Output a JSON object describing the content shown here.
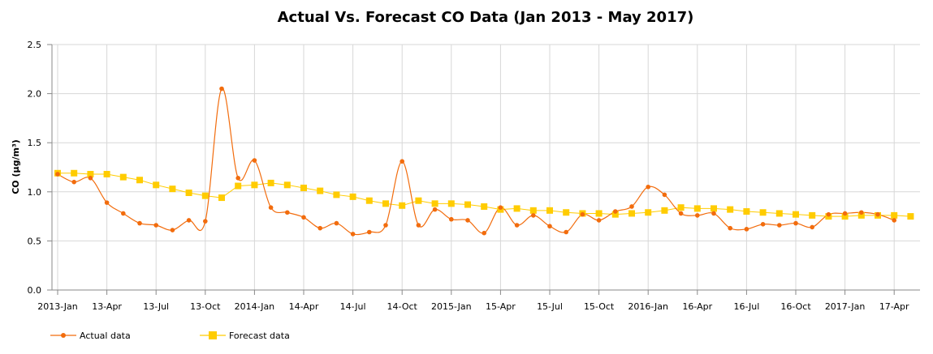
{
  "chart_data": {
    "type": "line",
    "title": "Actual Vs. Forecast CO Data (Jan 2013 - May 2017)",
    "ylabel": "CO (µg/m³)",
    "xlabel": "",
    "ylim": [
      0,
      2.5
    ],
    "yticks": [
      "0.0",
      "0.5",
      "1.0",
      "1.5",
      "2.0",
      "2.5"
    ],
    "grid": true,
    "legend_position": "bottom-left",
    "x_ticks": [
      {
        "month_index": 0,
        "label": "2013-Jan"
      },
      {
        "month_index": 3,
        "label": "13-Apr"
      },
      {
        "month_index": 6,
        "label": "13-Jul"
      },
      {
        "month_index": 9,
        "label": "13-Oct"
      },
      {
        "month_index": 12,
        "label": "2014-Jan"
      },
      {
        "month_index": 15,
        "label": "14-Apr"
      },
      {
        "month_index": 18,
        "label": "14-Jul"
      },
      {
        "month_index": 21,
        "label": "14-Oct"
      },
      {
        "month_index": 24,
        "label": "2015-Jan"
      },
      {
        "month_index": 27,
        "label": "15-Apr"
      },
      {
        "month_index": 30,
        "label": "15-Jul"
      },
      {
        "month_index": 33,
        "label": "15-Oct"
      },
      {
        "month_index": 36,
        "label": "2016-Jan"
      },
      {
        "month_index": 39,
        "label": "16-Apr"
      },
      {
        "month_index": 42,
        "label": "16-Jul"
      },
      {
        "month_index": 45,
        "label": "16-Oct"
      },
      {
        "month_index": 48,
        "label": "2017-Jan"
      },
      {
        "month_index": 51,
        "label": "17-Apr"
      }
    ],
    "series": [
      {
        "name": "Actual data",
        "color": "#f26c0d",
        "marker": "circle",
        "points": [
          [
            0,
            1.18
          ],
          [
            1,
            1.1
          ],
          [
            2,
            1.14
          ],
          [
            3,
            0.89
          ],
          [
            4,
            0.78
          ],
          [
            5,
            0.68
          ],
          [
            6,
            0.66
          ],
          [
            7,
            0.61
          ],
          [
            8,
            0.71
          ],
          [
            9,
            0.7
          ],
          [
            10,
            2.05
          ],
          [
            11,
            1.14
          ],
          [
            12,
            1.32
          ],
          [
            13,
            0.84
          ],
          [
            14,
            0.79
          ],
          [
            15,
            0.74
          ],
          [
            16,
            0.63
          ],
          [
            17,
            0.68
          ],
          [
            18,
            0.57
          ],
          [
            19,
            0.59
          ],
          [
            20,
            0.66
          ],
          [
            21,
            1.31
          ],
          [
            22,
            0.66
          ],
          [
            23,
            0.82
          ],
          [
            24,
            0.72
          ],
          [
            25,
            0.71
          ],
          [
            26,
            0.58
          ],
          [
            27,
            0.84
          ],
          [
            28,
            0.66
          ],
          [
            29,
            0.76
          ],
          [
            30,
            0.65
          ],
          [
            31,
            0.59
          ],
          [
            32,
            0.77
          ],
          [
            33,
            0.71
          ],
          [
            34,
            0.8
          ],
          [
            35,
            0.85
          ],
          [
            36,
            1.05
          ],
          [
            37,
            0.97
          ],
          [
            38,
            0.78
          ],
          [
            39,
            0.76
          ],
          [
            40,
            0.78
          ],
          [
            41,
            0.63
          ],
          [
            42,
            0.62
          ],
          [
            43,
            0.67
          ],
          [
            44,
            0.66
          ],
          [
            45,
            0.68
          ],
          [
            46,
            0.64
          ],
          [
            47,
            0.77
          ],
          [
            48,
            0.78
          ],
          [
            49,
            0.79
          ],
          [
            50,
            0.77
          ],
          [
            51,
            0.71
          ]
        ]
      },
      {
        "name": "Forecast data",
        "color": "#ffcc00",
        "marker": "square",
        "points": [
          [
            0,
            1.19
          ],
          [
            1,
            1.19
          ],
          [
            2,
            1.18
          ],
          [
            3,
            1.18
          ],
          [
            4,
            1.15
          ],
          [
            5,
            1.12
          ],
          [
            6,
            1.07
          ],
          [
            7,
            1.03
          ],
          [
            8,
            0.99
          ],
          [
            9,
            0.96
          ],
          [
            10,
            0.94
          ],
          [
            11,
            1.06
          ],
          [
            12,
            1.07
          ],
          [
            13,
            1.09
          ],
          [
            14,
            1.07
          ],
          [
            15,
            1.04
          ],
          [
            16,
            1.01
          ],
          [
            17,
            0.97
          ],
          [
            18,
            0.95
          ],
          [
            19,
            0.91
          ],
          [
            20,
            0.88
          ],
          [
            21,
            0.86
          ],
          [
            22,
            0.91
          ],
          [
            23,
            0.88
          ],
          [
            24,
            0.88
          ],
          [
            25,
            0.87
          ],
          [
            26,
            0.85
          ],
          [
            27,
            0.82
          ],
          [
            28,
            0.83
          ],
          [
            29,
            0.81
          ],
          [
            30,
            0.81
          ],
          [
            31,
            0.79
          ],
          [
            32,
            0.78
          ],
          [
            33,
            0.78
          ],
          [
            34,
            0.77
          ],
          [
            35,
            0.78
          ],
          [
            36,
            0.79
          ],
          [
            37,
            0.81
          ],
          [
            38,
            0.84
          ],
          [
            39,
            0.83
          ],
          [
            40,
            0.83
          ],
          [
            41,
            0.82
          ],
          [
            42,
            0.8
          ],
          [
            43,
            0.79
          ],
          [
            44,
            0.78
          ],
          [
            45,
            0.77
          ],
          [
            46,
            0.76
          ],
          [
            47,
            0.75
          ],
          [
            48,
            0.75
          ],
          [
            49,
            0.76
          ],
          [
            50,
            0.76
          ],
          [
            51,
            0.76
          ],
          [
            52,
            0.75
          ]
        ]
      }
    ]
  }
}
